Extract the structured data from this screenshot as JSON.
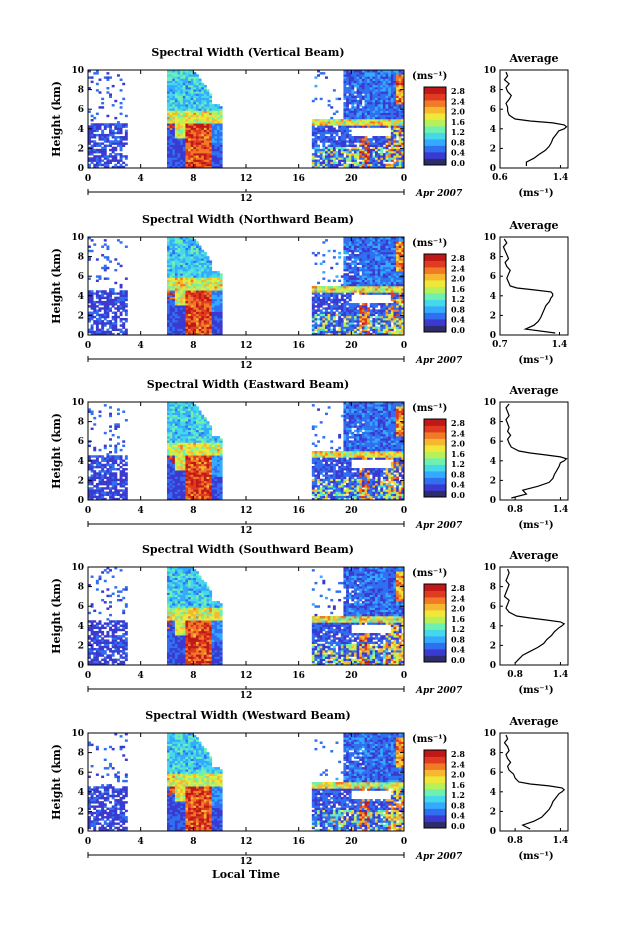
{
  "figure": {
    "xlabel": "Local Time",
    "date_label": "Apr 2007",
    "secondary_x_tick": "12",
    "colorbar_unit": "(ms⁻¹)",
    "colorbar_ticks": [
      "2.8",
      "2.4",
      "2.0",
      "1.6",
      "1.2",
      "0.8",
      "0.4",
      "0.0"
    ],
    "colorbar_colors": [
      "#2d2d6e",
      "#3a3ad0",
      "#2f6ff0",
      "#33aaff",
      "#45d8e8",
      "#6ef0b0",
      "#b8f05a",
      "#f0e838",
      "#f7b830",
      "#f07a26",
      "#e03a20",
      "#c01818"
    ],
    "missing_color": "#ffffff"
  },
  "chart_data": [
    {
      "type": "heatmap",
      "title": "Spectral Width (Vertical Beam)",
      "ylabel": "Height (km)",
      "yticks": [
        "0",
        "2",
        "4",
        "6",
        "8",
        "10"
      ],
      "xticks": [
        "0",
        "4",
        "8",
        "12",
        "16",
        "20",
        "0"
      ],
      "ylim": [
        0,
        10
      ],
      "xlim": [
        0,
        24
      ],
      "profile": {
        "title": "Average",
        "xticks": [
          "0.6",
          "1.4"
        ],
        "xlabel": "(ms⁻¹)",
        "xlim": [
          0.6,
          1.5
        ],
        "heights": [
          0.2,
          0.6,
          1.0,
          1.4,
          1.8,
          2.2,
          2.6,
          3.0,
          3.4,
          3.8,
          4.0,
          4.2,
          4.4,
          4.6,
          4.8,
          5.0,
          5.4,
          5.8,
          6.2,
          6.6,
          7.0,
          7.4,
          7.8,
          8.2,
          8.6,
          9.0,
          9.4,
          9.8
        ],
        "values": [
          0.95,
          0.95,
          1.05,
          1.12,
          1.2,
          1.25,
          1.28,
          1.3,
          1.34,
          1.38,
          1.45,
          1.48,
          1.45,
          1.3,
          1.0,
          0.8,
          0.72,
          0.7,
          0.7,
          0.68,
          0.72,
          0.75,
          0.7,
          0.68,
          0.72,
          0.66,
          0.7,
          0.68
        ]
      }
    },
    {
      "type": "heatmap",
      "title": "Spectral Width (Northward Beam)",
      "ylabel": "Height (km)",
      "yticks": [
        "0",
        "2",
        "4",
        "6",
        "8",
        "10"
      ],
      "xticks": [
        "0",
        "4",
        "8",
        "12",
        "16",
        "20",
        "0"
      ],
      "ylim": [
        0,
        10
      ],
      "xlim": [
        0,
        24
      ],
      "profile": {
        "title": "Average",
        "xticks": [
          "0.7",
          "1.4"
        ],
        "xlabel": "(ms⁻¹)",
        "xlim": [
          0.7,
          1.5
        ],
        "heights": [
          0.2,
          0.6,
          1.0,
          1.4,
          1.8,
          2.2,
          2.6,
          3.0,
          3.4,
          3.8,
          4.0,
          4.2,
          4.4,
          4.6,
          4.8,
          5.0,
          5.4,
          5.8,
          6.2,
          6.6,
          7.0,
          7.4,
          7.8,
          8.2,
          8.6,
          9.0,
          9.4,
          9.8
        ],
        "values": [
          1.35,
          1.0,
          1.1,
          1.15,
          1.18,
          1.2,
          1.22,
          1.24,
          1.28,
          1.3,
          1.32,
          1.32,
          1.3,
          1.1,
          0.9,
          0.82,
          0.8,
          0.78,
          0.8,
          0.82,
          0.78,
          0.76,
          0.8,
          0.78,
          0.76,
          0.74,
          0.78,
          0.75
        ]
      }
    },
    {
      "type": "heatmap",
      "title": "Spectral Width (Eastward Beam)",
      "ylabel": "Height (km)",
      "yticks": [
        "0",
        "2",
        "4",
        "6",
        "8",
        "10"
      ],
      "xticks": [
        "0",
        "4",
        "8",
        "12",
        "16",
        "20",
        "0"
      ],
      "ylim": [
        0,
        10
      ],
      "xlim": [
        0,
        24
      ],
      "profile": {
        "title": "Average",
        "xticks": [
          "0.8",
          "1.4"
        ],
        "xlabel": "(ms⁻¹)",
        "xlim": [
          0.6,
          1.5
        ],
        "heights": [
          0.2,
          0.6,
          1.0,
          1.4,
          1.8,
          2.2,
          2.6,
          3.0,
          3.4,
          3.8,
          4.0,
          4.2,
          4.4,
          4.6,
          4.8,
          5.0,
          5.4,
          5.8,
          6.2,
          6.6,
          7.0,
          7.4,
          7.8,
          8.2,
          8.6,
          9.0,
          9.4,
          9.8
        ],
        "values": [
          0.75,
          0.95,
          0.9,
          1.1,
          1.25,
          1.3,
          1.32,
          1.35,
          1.38,
          1.4,
          1.45,
          1.48,
          1.4,
          1.2,
          1.0,
          0.85,
          0.75,
          0.72,
          0.7,
          0.74,
          0.7,
          0.72,
          0.7,
          0.68,
          0.72,
          0.7,
          0.68,
          0.72
        ]
      }
    },
    {
      "type": "heatmap",
      "title": "Spectral Width (Southward Beam)",
      "ylabel": "Height (km)",
      "yticks": [
        "0",
        "2",
        "4",
        "6",
        "8",
        "10"
      ],
      "xticks": [
        "0",
        "4",
        "8",
        "12",
        "16",
        "20",
        "0"
      ],
      "ylim": [
        0,
        10
      ],
      "xlim": [
        0,
        24
      ],
      "profile": {
        "title": "Average",
        "xticks": [
          "0.8",
          "1.4"
        ],
        "xlabel": "(ms⁻¹)",
        "xlim": [
          0.6,
          1.5
        ],
        "heights": [
          0.2,
          0.6,
          1.0,
          1.4,
          1.8,
          2.2,
          2.6,
          3.0,
          3.4,
          3.8,
          4.0,
          4.2,
          4.4,
          4.6,
          4.8,
          5.0,
          5.4,
          5.8,
          6.2,
          6.6,
          7.0,
          7.4,
          7.8,
          8.2,
          8.6,
          9.0,
          9.4,
          9.8
        ],
        "values": [
          0.8,
          0.85,
          0.9,
          1.0,
          1.1,
          1.18,
          1.22,
          1.28,
          1.32,
          1.38,
          1.42,
          1.45,
          1.4,
          1.2,
          1.0,
          0.82,
          0.72,
          0.68,
          0.7,
          0.72,
          0.66,
          0.68,
          0.7,
          0.72,
          0.68,
          0.7,
          0.72,
          0.7
        ]
      }
    },
    {
      "type": "heatmap",
      "title": "Spectral Width (Westward Beam)",
      "ylabel": "Height (km)",
      "yticks": [
        "0",
        "2",
        "4",
        "6",
        "8",
        "10"
      ],
      "xticks": [
        "0",
        "4",
        "8",
        "12",
        "16",
        "20",
        "0"
      ],
      "ylim": [
        0,
        10
      ],
      "xlim": [
        0,
        24
      ],
      "profile": {
        "title": "Average",
        "xticks": [
          "0.8",
          "1.4"
        ],
        "xlabel": "(ms⁻¹)",
        "xlim": [
          0.6,
          1.5
        ],
        "heights": [
          0.2,
          0.6,
          1.0,
          1.4,
          1.8,
          2.2,
          2.6,
          3.0,
          3.4,
          3.8,
          4.0,
          4.2,
          4.4,
          4.6,
          4.8,
          5.0,
          5.4,
          5.8,
          6.2,
          6.6,
          7.0,
          7.4,
          7.8,
          8.2,
          8.6,
          9.0,
          9.4,
          9.8
        ],
        "values": [
          1.0,
          0.9,
          1.05,
          1.15,
          1.2,
          1.25,
          1.28,
          1.3,
          1.34,
          1.38,
          1.42,
          1.45,
          1.42,
          1.25,
          1.0,
          0.85,
          0.8,
          0.78,
          0.72,
          0.7,
          0.74,
          0.7,
          0.68,
          0.72,
          0.7,
          0.66,
          0.7,
          0.68
        ]
      }
    }
  ]
}
